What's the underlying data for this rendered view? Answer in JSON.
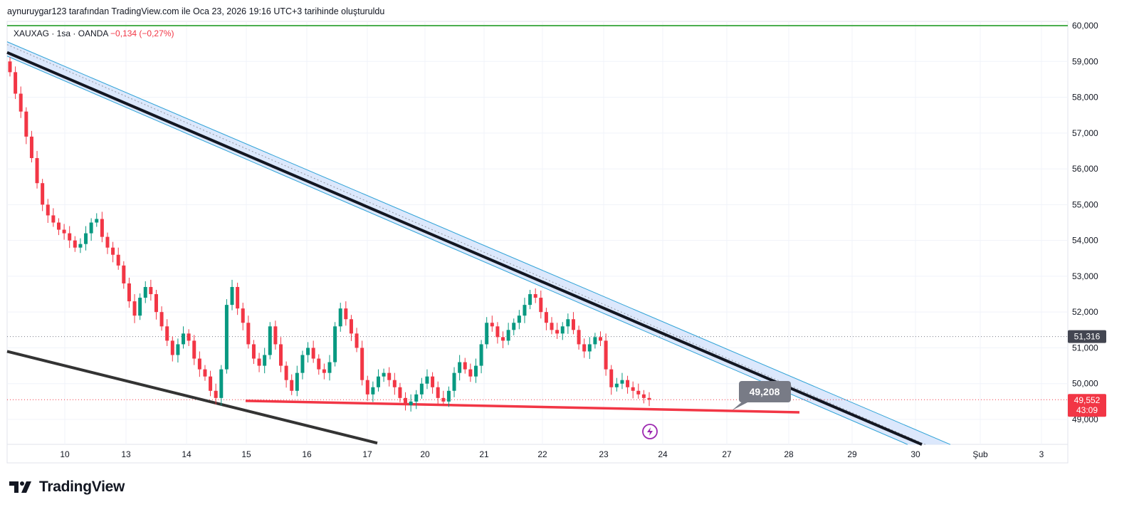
{
  "header": {
    "caption": "aynuruygar123 tarafından TradingView.com ile Oca 23, 2026 19:16 UTC+3 tarihinde oluşturuldu"
  },
  "symbol": {
    "label": "XAUXAG · 1sa · OANDA",
    "change": "−0,134 (−0,27%)"
  },
  "brand": {
    "name": "TradingView"
  },
  "colors": {
    "up": "#089981",
    "down": "#f23645",
    "trendline": "#131722",
    "support": "#f23645",
    "channel_fill": "#d6e4fb",
    "channel_edge": "#2ea2d6",
    "top_line": "#4caf50"
  },
  "chart_data": {
    "type": "candlestick",
    "y_axis": {
      "ticks": [
        60000,
        59000,
        58000,
        57000,
        56000,
        55000,
        54000,
        53000,
        52000,
        51000,
        50000,
        49000
      ],
      "tick_labels": [
        "60,000",
        "59,000",
        "58,000",
        "57,000",
        "56,000",
        "55,000",
        "54,000",
        "53,000",
        "52,000",
        "51,000",
        "50,000",
        "49,000"
      ],
      "range": [
        48300,
        60100
      ]
    },
    "x_axis": {
      "tick_labels": [
        "10",
        "13",
        "14",
        "15",
        "16",
        "17",
        "20",
        "21",
        "22",
        "23",
        "24",
        "27",
        "28",
        "29",
        "30",
        "Şub",
        "3"
      ]
    },
    "price_labels": {
      "reference": "51,316",
      "last": "49,552",
      "countdown": "43:09",
      "annotation": "49,208"
    },
    "levels": {
      "top_line": 60000,
      "reference": 51316,
      "last": 49552
    },
    "trendlines": [
      {
        "name": "",
        "from": [
          0,
          59250
        ],
        "to": [
          1285,
          48300
        ]
      },
      {
        "name": "",
        "from": [
          0,
          50900
        ],
        "to": [
          520,
          48340
        ]
      },
      {
        "name": "",
        "from": [
          335,
          49520
        ],
        "to": [
          1113,
          49200
        ]
      }
    ],
    "channel": {
      "from_upper": [
        0,
        59550
      ],
      "to_upper": [
        1325,
        48300
      ],
      "from_lower": [
        0,
        59150
      ],
      "to_lower": [
        1265,
        48300
      ]
    },
    "closes": [
      58700,
      58100,
      57600,
      56900,
      56300,
      55600,
      55000,
      54700,
      54500,
      54300,
      54200,
      54000,
      53800,
      53900,
      54200,
      54500,
      54600,
      54100,
      53800,
      53600,
      53300,
      52800,
      52300,
      51900,
      52400,
      52700,
      52500,
      52000,
      51600,
      51200,
      50800,
      51100,
      51400,
      51200,
      50700,
      50400,
      50200,
      49800,
      49600,
      50400,
      52200,
      52700,
      52100,
      51700,
      51100,
      50700,
      50500,
      50800,
      51600,
      51100,
      50500,
      50100,
      49800,
      50300,
      50800,
      51000,
      50700,
      50400,
      50300,
      50600,
      51600,
      52100,
      51800,
      51400,
      51000,
      50100,
      49700,
      49900,
      50200,
      50300,
      50100,
      49900,
      49600,
      49400,
      49500,
      49700,
      50000,
      50200,
      49900,
      49600,
      49500,
      49800,
      50300,
      50600,
      50400,
      50200,
      50500,
      51100,
      51700,
      51600,
      51300,
      51200,
      51500,
      51700,
      51900,
      52200,
      52500,
      52400,
      52000,
      51700,
      51500,
      51400,
      51600,
      51800,
      51500,
      51100,
      50900,
      51100,
      51300,
      51200,
      50400,
      49900,
      50000,
      50100,
      49900,
      49800,
      49700,
      49600,
      49552
    ]
  }
}
